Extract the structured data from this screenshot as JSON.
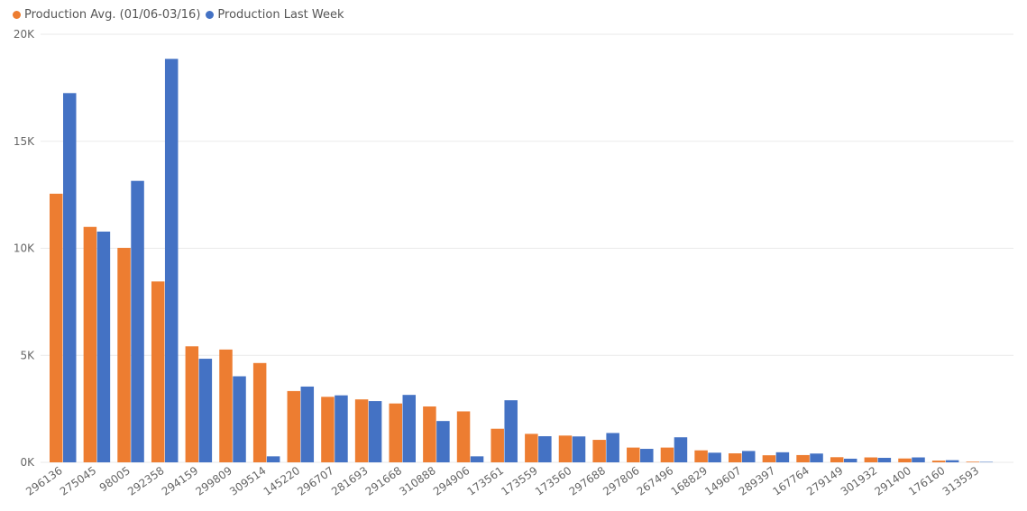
{
  "chart_data": {
    "type": "bar",
    "title": "",
    "xlabel": "",
    "ylabel": "",
    "ylim": [
      0,
      20000
    ],
    "y_ticks": [
      {
        "value": 0,
        "label": "0K"
      },
      {
        "value": 5000,
        "label": "5K"
      },
      {
        "value": 10000,
        "label": "10K"
      },
      {
        "value": 15000,
        "label": "15K"
      },
      {
        "value": 20000,
        "label": "20K"
      }
    ],
    "grid": true,
    "legend_position": "top-left",
    "categories": [
      "296136",
      "275045",
      "98005",
      "292358",
      "294159",
      "299809",
      "309514",
      "145220",
      "296707",
      "281693",
      "291668",
      "310888",
      "294906",
      "173561",
      "173559",
      "173560",
      "297688",
      "297806",
      "267496",
      "168829",
      "149607",
      "289397",
      "167764",
      "279149",
      "301932",
      "291400",
      "176160",
      "313593"
    ],
    "series": [
      {
        "name": "Production Avg. (01/06-03/16)",
        "color": "#ED7D31",
        "values": [
          12550,
          11000,
          10020,
          8450,
          5420,
          5270,
          4640,
          3330,
          3060,
          2940,
          2750,
          2610,
          2380,
          1570,
          1330,
          1250,
          1050,
          690,
          690,
          560,
          420,
          330,
          340,
          240,
          230,
          180,
          80,
          30
        ]
      },
      {
        "name": "Production Last Week",
        "color": "#4472C4",
        "values": [
          17250,
          10780,
          13150,
          18850,
          4840,
          4020,
          280,
          3540,
          3130,
          2860,
          3150,
          1930,
          280,
          2900,
          1220,
          1210,
          1370,
          630,
          1170,
          450,
          530,
          470,
          410,
          170,
          210,
          230,
          100,
          20
        ]
      }
    ]
  }
}
